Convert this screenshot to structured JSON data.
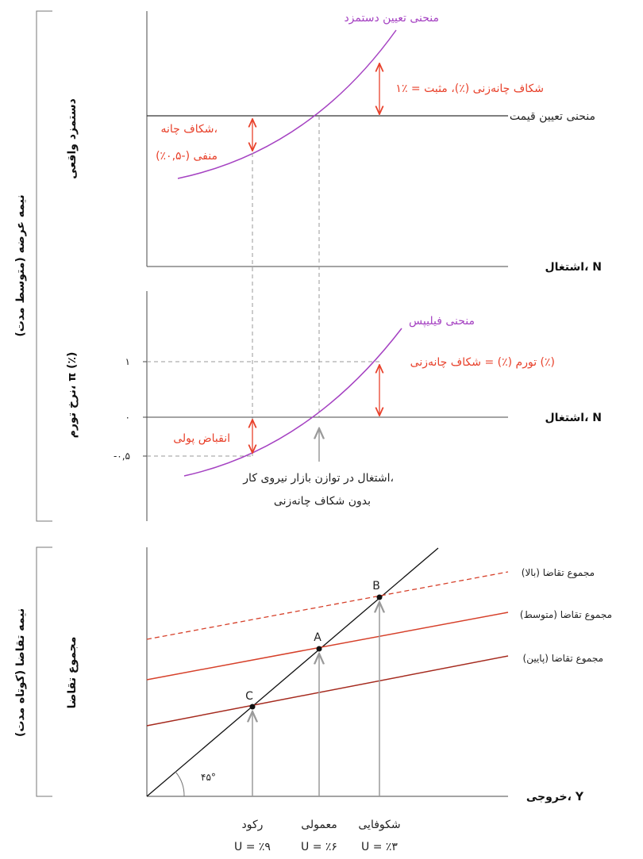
{
  "colors": {
    "axis": "#4a4a4a",
    "guide": "#9a9a9a",
    "purple_curve": "#a542c2",
    "red_annotation": "#e8412b",
    "demand_high": "#d6402a",
    "demand_mid": "#d6402a",
    "demand_low": "#a52a1e",
    "line45": "#111111"
  },
  "panels": {
    "supply_side_label": "نیمه عرضه (متوسط مدت)",
    "demand_side_label": "نیمه تقاضا (کوتاه مدت)"
  },
  "top": {
    "y_axis_label": "دستمزد واقعی",
    "x_axis_label": "اشتغال، N",
    "wage_curve_label": "منحنی تعیین دستمزد",
    "price_curve_label": "منحنی تعیین قیمت",
    "gap_positive_label": "۱٪ = شکاف چانه‌زنی (٪)، مثبت",
    "gap_negative_line1": "شکاف چانه،",
    "gap_negative_line2": "منفی (-۰,۵٪)"
  },
  "middle": {
    "y_axis_label": "نرخ تورم، π (٪)",
    "x_axis_label": "اشتغال، N",
    "phillips_label": "منحنی فیلیپس",
    "inflation_label": "تورم (٪) = شکاف چانه‌زنی (٪)",
    "deflation_label": "انقباض پولی",
    "equilibrium_line1": "اشتغال در توازن بازار نیروی کار،",
    "equilibrium_line2": "بدون شکاف چانه‌زنی",
    "ticks": [
      {
        "label": "۱",
        "value": 1
      },
      {
        "label": "۰",
        "value": 0
      },
      {
        "label": "-۰,۵",
        "value": -0.5
      }
    ]
  },
  "bottom": {
    "y_axis_label": "مجموع تقاضا",
    "x_axis_label": "خروجی، Y",
    "angle_label": "۴۵°",
    "demand_high_label": "مجموع تقاضا (بالا)",
    "demand_mid_label": "مجموع تقاضا (متوسط)",
    "demand_low_label": "مجموع تقاضا (پایین)",
    "points": [
      {
        "label": "C",
        "state": "رکود",
        "unemployment": "U = ٪۹"
      },
      {
        "label": "A",
        "state": "معمولی",
        "unemployment": "U = ٪۶"
      },
      {
        "label": "B",
        "state": "شکوفایی",
        "unemployment": "U = ٪۳"
      }
    ]
  }
}
